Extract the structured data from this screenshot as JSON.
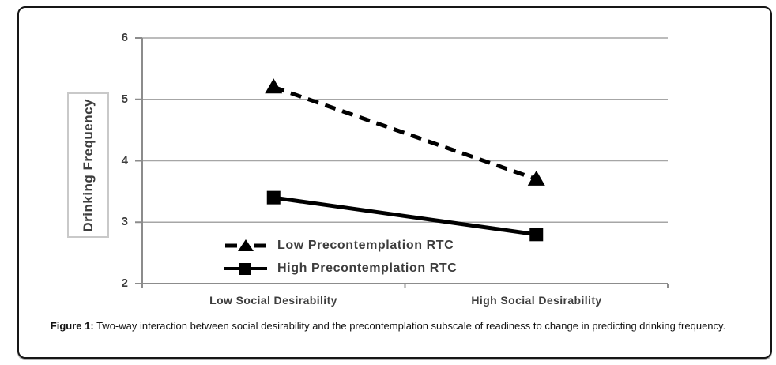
{
  "figure": {
    "caption_label": "Figure 1:",
    "caption_text": " Two-way interaction between social desirability and the precontemplation subscale of readiness to change in predicting drinking frequency."
  },
  "chart_data": {
    "type": "line",
    "title": "",
    "categories": [
      "Low Social Desirability",
      "High Social Desirability"
    ],
    "series": [
      {
        "name": "Low Precontemplation RTC",
        "values": [
          5.2,
          3.7
        ],
        "line_style": "dashed",
        "marker": "triangle",
        "color": "#000000"
      },
      {
        "name": "High Precontemplation RTC",
        "values": [
          3.4,
          2.8
        ],
        "line_style": "solid",
        "marker": "square",
        "color": "#000000"
      }
    ],
    "xlabel": "",
    "ylabel": "Drinking Frequency",
    "ylim": [
      2,
      6
    ],
    "yticks": [
      2,
      3,
      4,
      5,
      6
    ],
    "grid": "horizontal",
    "legend_position": "inside-bottom-left",
    "colors": {
      "gridline": "#a6a6a6",
      "axis": "#8c8c8c",
      "text": "#3d3d3d",
      "series_line": "#000000"
    }
  }
}
